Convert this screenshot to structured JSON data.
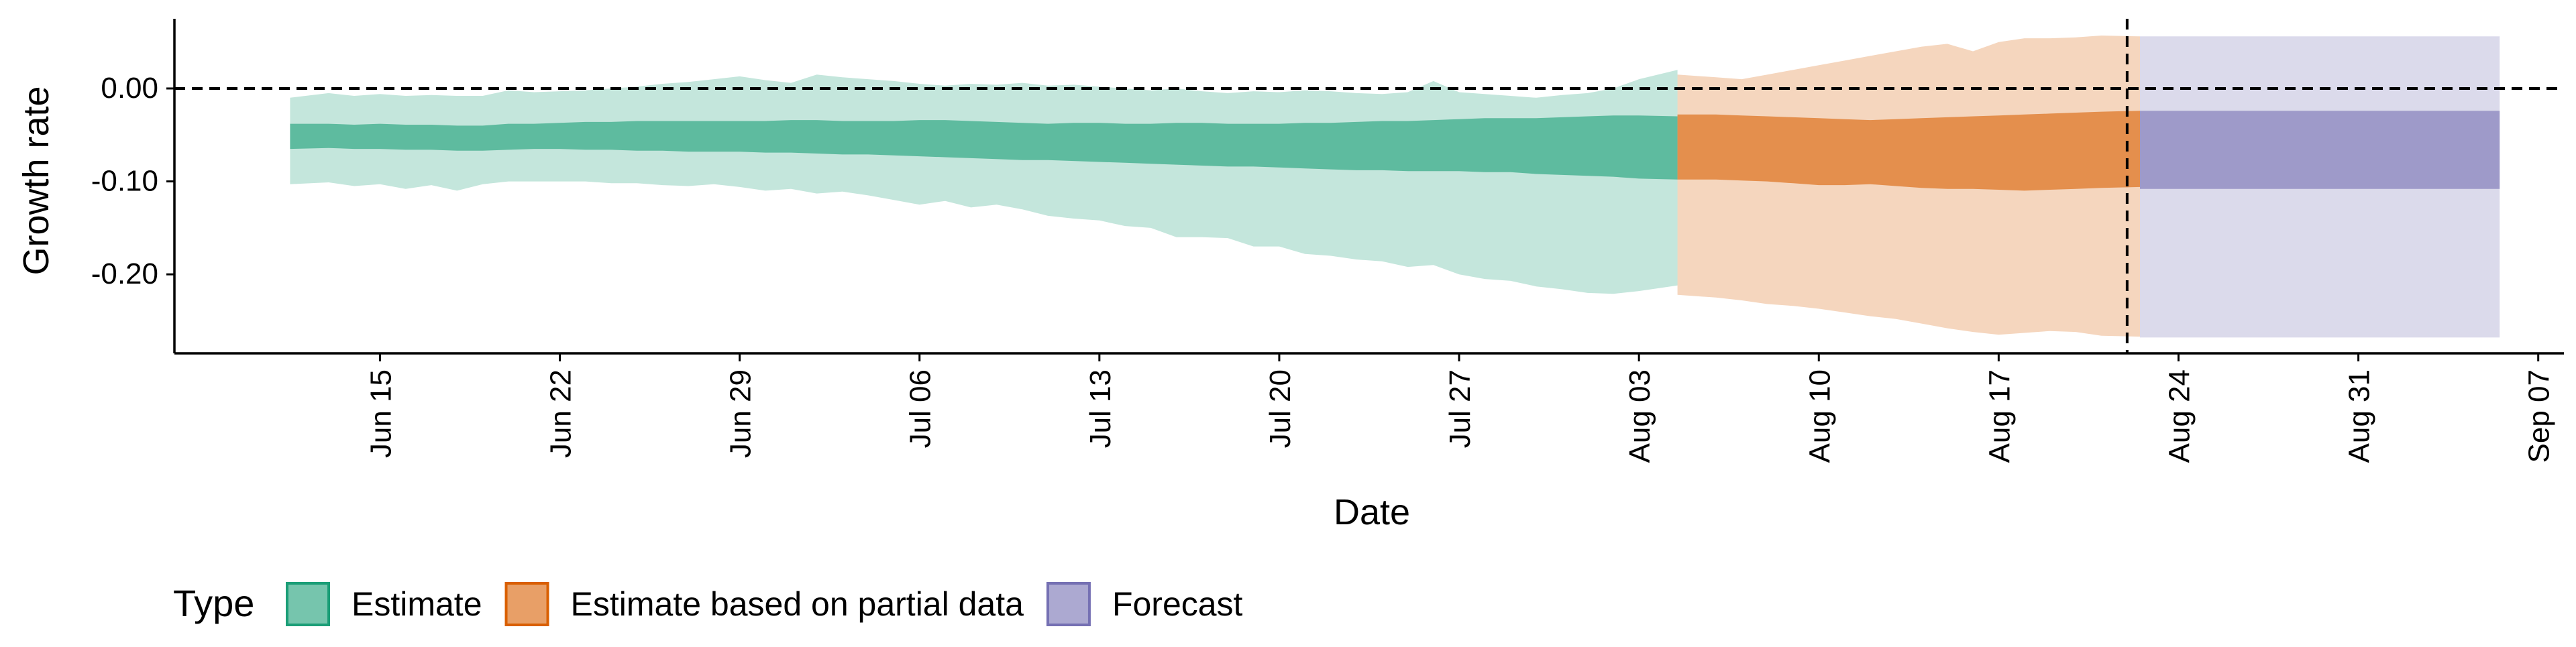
{
  "chart_data": {
    "type": "area",
    "xlabel": "Date",
    "ylabel": "Growth rate",
    "x_ticks": [
      "Jun 15",
      "Jun 22",
      "Jun 29",
      "Jul 06",
      "Jul 13",
      "Jul 20",
      "Jul 27",
      "Aug 03",
      "Aug 10",
      "Aug 17",
      "Aug 24",
      "Aug 31",
      "Sep 07"
    ],
    "y_ticks": [
      "0.00",
      "-0.10",
      "-0.20"
    ],
    "ylim": [
      -0.285,
      0.075
    ],
    "x_range": [
      "2020-06-07",
      "2020-09-08"
    ],
    "grid": false,
    "reference_hline": 0.0,
    "reference_vline": "2020-08-22",
    "legend": {
      "title": "Type",
      "position": "bottom",
      "entries": [
        "Estimate",
        "Estimate based on partial data",
        "Forecast"
      ]
    },
    "colors": {
      "Estimate": "#1b9e77",
      "Estimate based on partial data": "#d95f02",
      "Forecast": "#7570b3"
    },
    "series": [
      {
        "name": "Estimate",
        "x": [
          "2020-06-12",
          "2020-06-13",
          "2020-06-14",
          "2020-06-15",
          "2020-06-16",
          "2020-06-17",
          "2020-06-18",
          "2020-06-19",
          "2020-06-20",
          "2020-06-21",
          "2020-06-22",
          "2020-06-23",
          "2020-06-24",
          "2020-06-25",
          "2020-06-26",
          "2020-06-27",
          "2020-06-28",
          "2020-06-29",
          "2020-06-30",
          "2020-07-01",
          "2020-07-02",
          "2020-07-03",
          "2020-07-04",
          "2020-07-05",
          "2020-07-06",
          "2020-07-07",
          "2020-07-08",
          "2020-07-09",
          "2020-07-10",
          "2020-07-11",
          "2020-07-12",
          "2020-07-13",
          "2020-07-14",
          "2020-07-15",
          "2020-07-16",
          "2020-07-17",
          "2020-07-18",
          "2020-07-19",
          "2020-07-20",
          "2020-07-21",
          "2020-07-22",
          "2020-07-23",
          "2020-07-24",
          "2020-07-25",
          "2020-07-26",
          "2020-07-27",
          "2020-07-28",
          "2020-07-29",
          "2020-07-30",
          "2020-07-31",
          "2020-08-01",
          "2020-08-02",
          "2020-08-03",
          "2020-08-04"
        ],
        "upper_90": [
          -0.01,
          -0.005,
          -0.008,
          -0.006,
          -0.008,
          -0.007,
          -0.008,
          -0.008,
          -0.002,
          -0.004,
          -0.003,
          -0.002,
          0.0,
          0.002,
          0.005,
          0.007,
          0.01,
          0.013,
          0.009,
          0.006,
          0.015,
          0.012,
          0.01,
          0.008,
          0.005,
          0.003,
          0.005,
          0.004,
          0.006,
          0.003,
          0.004,
          0.002,
          0.0,
          -0.002,
          0.0,
          -0.003,
          -0.005,
          -0.003,
          -0.004,
          -0.002,
          -0.003,
          -0.005,
          -0.006,
          -0.004,
          0.008,
          -0.004,
          -0.006,
          -0.008,
          -0.01,
          -0.007,
          -0.005,
          0.0,
          0.01,
          0.02
        ],
        "upper_50": [
          -0.038,
          -0.038,
          -0.039,
          -0.038,
          -0.039,
          -0.039,
          -0.04,
          -0.04,
          -0.038,
          -0.038,
          -0.037,
          -0.036,
          -0.036,
          -0.035,
          -0.035,
          -0.035,
          -0.035,
          -0.035,
          -0.035,
          -0.034,
          -0.034,
          -0.035,
          -0.035,
          -0.035,
          -0.034,
          -0.034,
          -0.035,
          -0.036,
          -0.037,
          -0.038,
          -0.037,
          -0.037,
          -0.038,
          -0.038,
          -0.037,
          -0.037,
          -0.038,
          -0.038,
          -0.038,
          -0.037,
          -0.037,
          -0.036,
          -0.035,
          -0.035,
          -0.034,
          -0.033,
          -0.032,
          -0.032,
          -0.032,
          -0.031,
          -0.03,
          -0.029,
          -0.029,
          -0.03
        ],
        "lower_50": [
          -0.065,
          -0.064,
          -0.065,
          -0.065,
          -0.066,
          -0.066,
          -0.067,
          -0.067,
          -0.066,
          -0.065,
          -0.065,
          -0.066,
          -0.066,
          -0.067,
          -0.067,
          -0.068,
          -0.068,
          -0.068,
          -0.069,
          -0.069,
          -0.07,
          -0.071,
          -0.071,
          -0.072,
          -0.073,
          -0.074,
          -0.075,
          -0.076,
          -0.077,
          -0.077,
          -0.078,
          -0.079,
          -0.08,
          -0.081,
          -0.082,
          -0.083,
          -0.084,
          -0.084,
          -0.085,
          -0.086,
          -0.087,
          -0.088,
          -0.088,
          -0.089,
          -0.089,
          -0.089,
          -0.09,
          -0.09,
          -0.092,
          -0.093,
          -0.094,
          -0.095,
          -0.097,
          -0.098
        ],
        "lower_90": [
          -0.103,
          -0.101,
          -0.105,
          -0.103,
          -0.108,
          -0.104,
          -0.11,
          -0.103,
          -0.1,
          -0.1,
          -0.1,
          -0.1,
          -0.102,
          -0.102,
          -0.104,
          -0.105,
          -0.103,
          -0.106,
          -0.11,
          -0.108,
          -0.113,
          -0.111,
          -0.115,
          -0.12,
          -0.125,
          -0.121,
          -0.128,
          -0.125,
          -0.13,
          -0.137,
          -0.14,
          -0.142,
          -0.148,
          -0.15,
          -0.16,
          -0.16,
          -0.161,
          -0.17,
          -0.17,
          -0.178,
          -0.18,
          -0.184,
          -0.186,
          -0.192,
          -0.19,
          -0.2,
          -0.205,
          -0.207,
          -0.213,
          -0.216,
          -0.22,
          -0.221,
          -0.218,
          -0.212
        ]
      },
      {
        "name": "Estimate based on partial data",
        "x": [
          "2020-08-05",
          "2020-08-06",
          "2020-08-07",
          "2020-08-08",
          "2020-08-09",
          "2020-08-10",
          "2020-08-11",
          "2020-08-12",
          "2020-08-13",
          "2020-08-14",
          "2020-08-15",
          "2020-08-16",
          "2020-08-17",
          "2020-08-18",
          "2020-08-19",
          "2020-08-20",
          "2020-08-21",
          "2020-08-22"
        ],
        "upper_90": [
          0.015,
          0.012,
          0.01,
          0.015,
          0.02,
          0.025,
          0.03,
          0.035,
          0.04,
          0.045,
          0.048,
          0.04,
          0.05,
          0.054,
          0.054,
          0.055,
          0.057,
          0.056
        ],
        "upper_50": [
          -0.028,
          -0.028,
          -0.029,
          -0.03,
          -0.031,
          -0.032,
          -0.033,
          -0.034,
          -0.033,
          -0.032,
          -0.031,
          -0.03,
          -0.029,
          -0.028,
          -0.027,
          -0.026,
          -0.025,
          -0.024
        ],
        "lower_50": [
          -0.098,
          -0.098,
          -0.099,
          -0.1,
          -0.102,
          -0.104,
          -0.104,
          -0.103,
          -0.105,
          -0.107,
          -0.108,
          -0.108,
          -0.109,
          -0.11,
          -0.109,
          -0.108,
          -0.107,
          -0.106
        ],
        "lower_90": [
          -0.222,
          -0.225,
          -0.228,
          -0.232,
          -0.234,
          -0.237,
          -0.241,
          -0.245,
          -0.248,
          -0.253,
          -0.258,
          -0.262,
          -0.265,
          -0.263,
          -0.261,
          -0.262,
          -0.266,
          -0.267
        ]
      },
      {
        "name": "Forecast",
        "x": [
          "2020-08-23",
          "2020-09-05"
        ],
        "upper_90": [
          0.056,
          0.056
        ],
        "upper_50": [
          -0.024,
          -0.024
        ],
        "lower_50": [
          -0.108,
          -0.108
        ],
        "lower_90": [
          -0.268,
          -0.268
        ]
      }
    ]
  }
}
